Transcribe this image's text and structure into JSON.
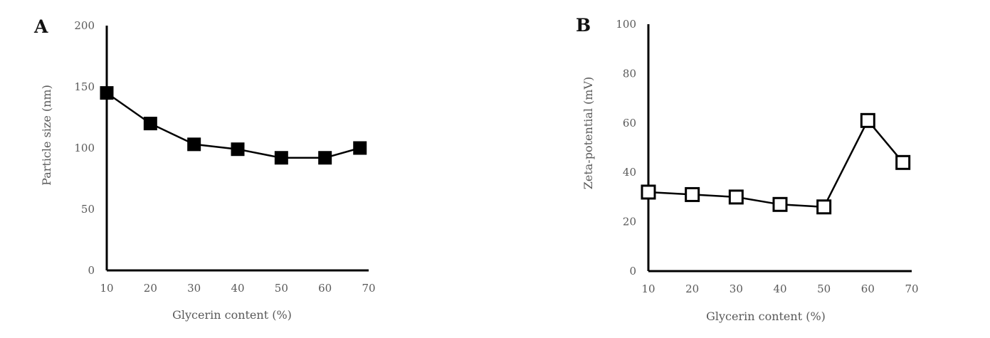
{
  "chart_data": [
    {
      "panel_label": "A",
      "type": "line",
      "xlabel": "Glycerin content (%)",
      "ylabel": "Particle size (nm)",
      "xlim": [
        10,
        70
      ],
      "ylim": [
        0,
        200
      ],
      "x_ticks": [
        "10",
        "20",
        "30",
        "40",
        "50",
        "60",
        "70"
      ],
      "y_ticks": [
        "0",
        "50",
        "100",
        "150",
        "200"
      ],
      "marker": "filled-square",
      "grid": false,
      "series": [
        {
          "x": [
            10,
            20,
            30,
            40,
            50,
            60,
            68
          ],
          "values": [
            145,
            120,
            103,
            99,
            92,
            92,
            100
          ]
        }
      ]
    },
    {
      "panel_label": "B",
      "type": "line",
      "xlabel": "Glycerin content (%)",
      "ylabel": "Zeta-potential (mV)",
      "xlim": [
        10,
        70
      ],
      "ylim": [
        0,
        100
      ],
      "x_ticks": [
        "10",
        "20",
        "30",
        "40",
        "50",
        "60",
        "70"
      ],
      "y_ticks": [
        "0",
        "20",
        "40",
        "60",
        "80",
        "100"
      ],
      "marker": "open-square",
      "grid": false,
      "series": [
        {
          "x": [
            10,
            20,
            30,
            40,
            50,
            60,
            68
          ],
          "values": [
            32,
            31,
            30,
            27,
            26,
            61,
            44
          ]
        }
      ]
    }
  ]
}
